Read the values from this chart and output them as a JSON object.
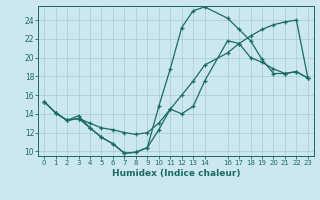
{
  "xlabel": "Humidex (Indice chaleur)",
  "background_color": "#cce8ee",
  "grid_color": "#b0d4dc",
  "line_color": "#1a6b60",
  "xlim": [
    -0.5,
    23.5
  ],
  "ylim": [
    9.5,
    25.5
  ],
  "xticks": [
    0,
    1,
    2,
    3,
    4,
    5,
    6,
    7,
    8,
    9,
    10,
    11,
    12,
    13,
    14,
    16,
    17,
    18,
    19,
    20,
    21,
    22,
    23
  ],
  "yticks": [
    10,
    12,
    14,
    16,
    18,
    20,
    22,
    24
  ],
  "lines": [
    {
      "x": [
        0,
        1,
        2,
        3,
        4,
        5,
        6,
        7,
        8,
        9,
        10,
        11,
        12,
        13,
        14,
        16,
        17,
        18,
        19,
        20,
        21,
        22,
        23
      ],
      "y": [
        15.3,
        14.1,
        13.3,
        13.8,
        12.5,
        11.5,
        10.8,
        9.8,
        9.9,
        10.4,
        14.8,
        18.8,
        23.2,
        25.0,
        25.4,
        24.2,
        23.0,
        21.8,
        19.8,
        18.3,
        18.3,
        18.5,
        17.8
      ]
    },
    {
      "x": [
        0,
        1,
        2,
        3,
        4,
        5,
        6,
        7,
        8,
        9,
        10,
        11,
        12,
        13,
        14,
        16,
        17,
        18,
        19,
        20,
        21,
        22,
        23
      ],
      "y": [
        15.3,
        14.1,
        13.3,
        13.5,
        13.0,
        12.5,
        12.3,
        12.0,
        11.8,
        12.0,
        13.0,
        14.5,
        16.0,
        17.5,
        19.2,
        20.5,
        21.5,
        22.3,
        23.0,
        23.5,
        23.8,
        24.0,
        17.8
      ]
    },
    {
      "x": [
        0,
        1,
        2,
        3,
        4,
        5,
        6,
        7,
        8,
        9,
        10,
        11,
        12,
        13,
        14,
        16,
        17,
        18,
        19,
        20,
        21,
        22,
        23
      ],
      "y": [
        15.3,
        14.1,
        13.3,
        13.5,
        12.5,
        11.5,
        10.8,
        9.8,
        9.9,
        10.4,
        12.3,
        14.5,
        14.0,
        14.8,
        17.5,
        21.8,
        21.5,
        20.0,
        19.5,
        18.8,
        18.3,
        18.5,
        17.8
      ]
    }
  ]
}
